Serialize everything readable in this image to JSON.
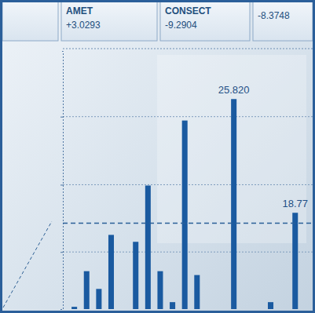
{
  "header": {
    "tickers": [
      {
        "name": "AMET",
        "change": "+3.0293"
      },
      {
        "name": "CONSECT",
        "change": "-9.2904"
      },
      {
        "change": "-8.3748"
      }
    ]
  },
  "chart_data": {
    "type": "bar",
    "categories": [
      null,
      null,
      null,
      null,
      null,
      null,
      null,
      null,
      null,
      null,
      null,
      null,
      null,
      null,
      null,
      null,
      null,
      null,
      null,
      null
    ],
    "values": [
      12.94,
      15.15,
      14.05,
      17.4,
      null,
      16.97,
      20.46,
      15.15,
      13.23,
      24.49,
      14.91,
      null,
      null,
      25.82,
      null,
      null,
      13.23,
      null,
      18.77,
      null
    ],
    "value_labels": [
      null,
      null,
      null,
      null,
      null,
      null,
      null,
      null,
      null,
      null,
      null,
      null,
      null,
      "25.820",
      null,
      null,
      null,
      null,
      "18.77",
      null
    ],
    "color": "#1a5aa0",
    "ylim": [
      12.8,
      28.8
    ],
    "yticks": [
      16.34,
      20.51,
      24.73
    ],
    "grid": true,
    "tick_labels": false,
    "reference_line": 18.12
  }
}
